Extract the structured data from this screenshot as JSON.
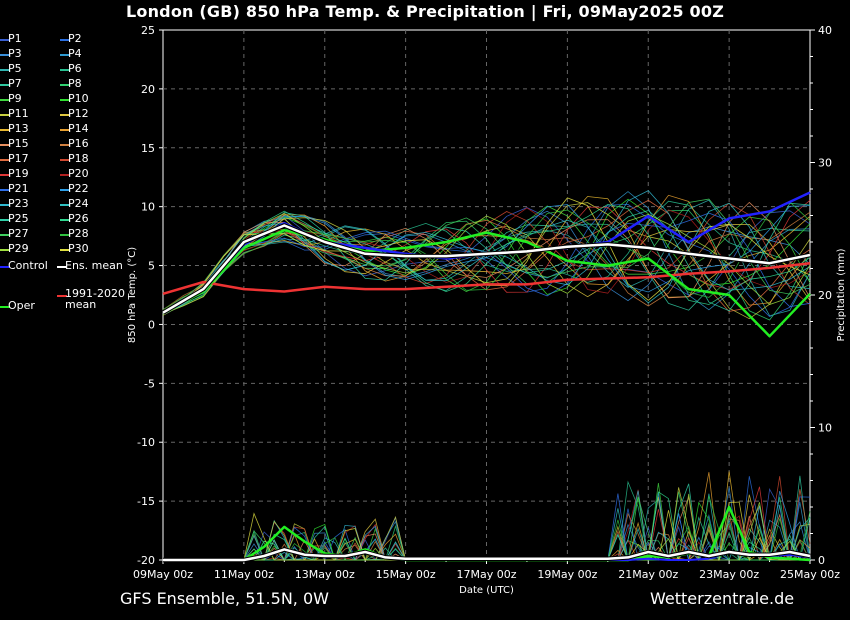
{
  "title": "London  (GB)  850 hPa Temp. & Precipitation | Fri, 09May2025 00Z",
  "footer": {
    "left": "GFS Ensemble, 51.5N, 0W",
    "right": "Wetterzentrale.de"
  },
  "colors": {
    "background": "#000000",
    "grid": "#666666",
    "control": "#2222ff",
    "ens_mean": "#ffffff",
    "oper": "#22ee22",
    "climate_mean": "#ee3333"
  },
  "legend": [
    {
      "label": "P1",
      "color": "#3a5fd0"
    },
    {
      "label": "P2",
      "color": "#2b6fe0"
    },
    {
      "label": "P3",
      "color": "#3a8fd8"
    },
    {
      "label": "P4",
      "color": "#2f9ad0"
    },
    {
      "label": "P5",
      "color": "#30b4b0"
    },
    {
      "label": "P6",
      "color": "#28c090"
    },
    {
      "label": "P7",
      "color": "#30c8a0"
    },
    {
      "label": "P8",
      "color": "#30d070"
    },
    {
      "label": "P9",
      "color": "#40d840"
    },
    {
      "label": "P10",
      "color": "#30e030"
    },
    {
      "label": "P11",
      "color": "#c8d040"
    },
    {
      "label": "P12",
      "color": "#e0c840"
    },
    {
      "label": "P13",
      "color": "#e8b830"
    },
    {
      "label": "P14",
      "color": "#e8a030"
    },
    {
      "label": "P15",
      "color": "#e89060"
    },
    {
      "label": "P16",
      "color": "#d08040"
    },
    {
      "label": "P17",
      "color": "#e06c40"
    },
    {
      "label": "P18",
      "color": "#d04830"
    },
    {
      "label": "P19",
      "color": "#e03838"
    },
    {
      "label": "P20",
      "color": "#b02020"
    },
    {
      "label": "P21",
      "color": "#2f6fe8"
    },
    {
      "label": "P22",
      "color": "#2fa0e8"
    },
    {
      "label": "P23",
      "color": "#30b8d0"
    },
    {
      "label": "P24",
      "color": "#30c0c0"
    },
    {
      "label": "P25",
      "color": "#30d0a8"
    },
    {
      "label": "P26",
      "color": "#30d890"
    },
    {
      "label": "P27",
      "color": "#40d060"
    },
    {
      "label": "P28",
      "color": "#30c040"
    },
    {
      "label": "P29",
      "color": "#a0e040"
    },
    {
      "label": "P30",
      "color": "#e0e040"
    },
    {
      "label": "Control",
      "color": "#2222ff"
    },
    {
      "label": "Ens. mean",
      "color": "#ffffff"
    },
    {
      "label": "Oper",
      "color": "#22ee22"
    },
    {
      "label": "1991-2020 mean",
      "color": "#ee3333"
    }
  ],
  "chart_data": {
    "type": "line",
    "xlabel": "Date (UTC)",
    "ylabel": "850 hPa Temp. (°C)",
    "ylabel_right": "Precipitation (mm)",
    "x_ticks": [
      "09May 00z",
      "11May 00z",
      "13May 00z",
      "15May 00z",
      "17May 00z",
      "19May 00z",
      "21May 00z",
      "23May 00z",
      "25May 00z"
    ],
    "x_range_days": [
      0,
      16
    ],
    "ylim": [
      -20,
      25
    ],
    "y_ticks": [
      25,
      20,
      15,
      10,
      5,
      0,
      -5,
      -10,
      -15,
      -20
    ],
    "y2lim": [
      0,
      40
    ],
    "y2_ticks": [
      40,
      30,
      20,
      10,
      0
    ],
    "grid": true,
    "temperature": {
      "x_days": [
        0,
        1,
        2,
        3,
        4,
        5,
        6,
        7,
        8,
        9,
        10,
        11,
        12,
        13,
        14,
        15,
        16
      ],
      "control": [
        1.0,
        3.0,
        6.8,
        8.6,
        7.0,
        6.5,
        6.0,
        5.6,
        6.0,
        6.2,
        6.5,
        7.0,
        9.2,
        7.0,
        9.0,
        9.6,
        11.2
      ],
      "ens_mean": [
        1.0,
        3.0,
        7.0,
        8.4,
        7.0,
        6.0,
        5.8,
        5.8,
        6.0,
        6.2,
        6.6,
        6.8,
        6.5,
        6.0,
        5.6,
        5.2,
        5.9
      ],
      "oper": [
        1.0,
        2.8,
        6.5,
        8.0,
        7.2,
        6.2,
        6.5,
        7.0,
        7.8,
        7.0,
        5.4,
        5.0,
        5.6,
        3.0,
        2.5,
        -1.0,
        2.6
      ],
      "climate_mean": [
        2.6,
        3.6,
        3.0,
        2.8,
        3.2,
        3.0,
        3.0,
        3.2,
        3.4,
        3.4,
        3.8,
        3.9,
        4.0,
        4.3,
        4.5,
        4.8,
        5.2
      ]
    },
    "precipitation": {
      "x_days": [
        0,
        1,
        2,
        2.5,
        3,
        3.5,
        4,
        4.5,
        5,
        5.5,
        6,
        7,
        8,
        9,
        10,
        11,
        11.5,
        12,
        12.5,
        13,
        13.5,
        14,
        14.5,
        15,
        15.5,
        16
      ],
      "control": [
        0,
        0,
        0,
        0.3,
        0.8,
        0.4,
        0.2,
        0.3,
        0.6,
        0.2,
        0,
        0,
        0,
        0,
        0,
        0,
        0,
        0.1,
        0,
        0,
        0.1,
        0.6,
        0.4,
        0.3,
        0.4,
        0.2
      ],
      "ens_mean": [
        0,
        0,
        0,
        0.3,
        0.8,
        0.4,
        0.3,
        0.3,
        0.6,
        0.2,
        0.1,
        0.1,
        0.1,
        0.1,
        0.1,
        0.1,
        0.2,
        0.6,
        0.3,
        0.6,
        0.3,
        0.6,
        0.4,
        0.4,
        0.6,
        0.3
      ],
      "oper": [
        0,
        0,
        0,
        1.0,
        2.5,
        1.4,
        0.5,
        0.3,
        0.8,
        0.2,
        0,
        0,
        0,
        0,
        0,
        0,
        0,
        0.3,
        0.2,
        0.5,
        0.3,
        4.0,
        0.6,
        0.2,
        0.1,
        0
      ]
    }
  }
}
